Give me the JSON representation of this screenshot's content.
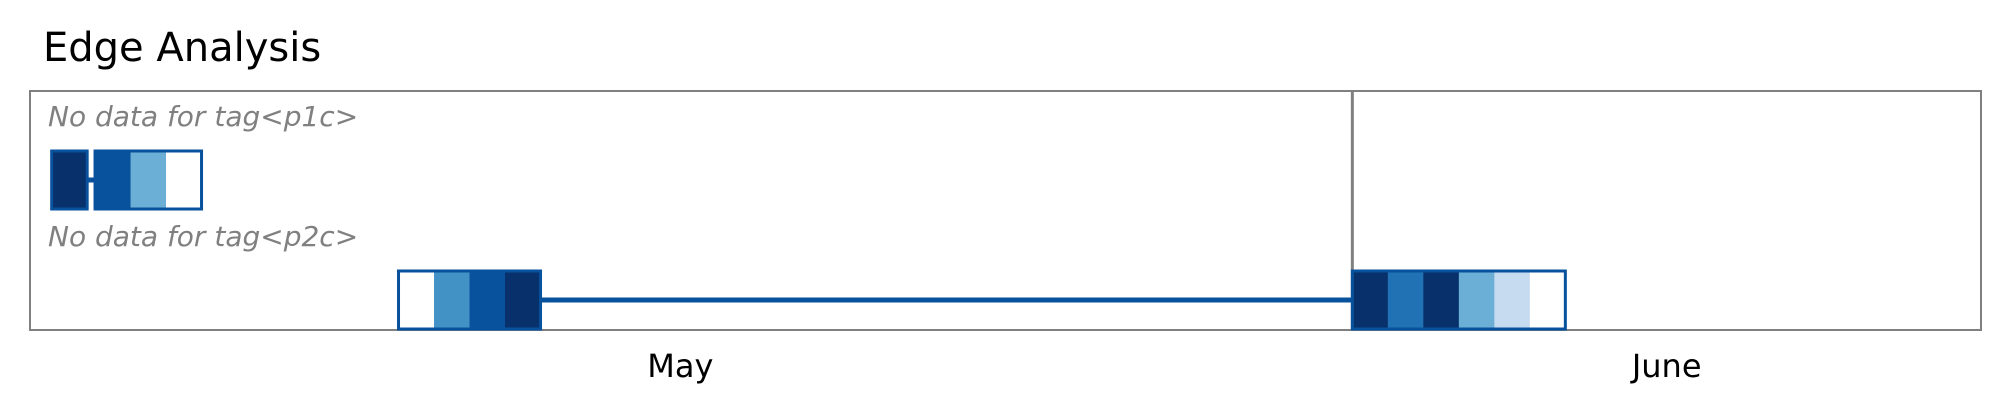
{
  "chart_data": {
    "type": "timeline",
    "title": "Edge Analysis",
    "x_axis": {
      "range": [
        "2023-04-01",
        "2023-06-30"
      ],
      "month_labels": [
        {
          "label": "May",
          "start": "2023-04-01",
          "end": "2023-05-31"
        },
        {
          "label": "June",
          "start": "2023-06-01",
          "end": "2023-06-30"
        }
      ]
    },
    "colors": {
      "frame": "#808080",
      "month_divider": "#808080",
      "connector": "#08519c",
      "block_border": "#08519c",
      "nodata_text": "#808080",
      "palette": [
        "#ffffff",
        "#c6dbef",
        "#6baed6",
        "#4292c6",
        "#2171b5",
        "#08519c",
        "#08306b"
      ]
    },
    "rows": [
      {
        "message": "No data for tag<p1c>",
        "groups": [
          {
            "start": "2023-04-02",
            "cells": [
              6
            ]
          },
          {
            "start": "2023-04-04",
            "cells": [
              5,
              2,
              0
            ]
          }
        ]
      },
      {
        "message": "No data for tag<p2c>",
        "groups": [
          {
            "start": "2023-04-18",
            "cells": [
              0,
              3,
              5,
              6
            ]
          },
          {
            "start": "2023-06-01",
            "cells": [
              6,
              4,
              6,
              2,
              1,
              0
            ]
          }
        ]
      }
    ]
  }
}
